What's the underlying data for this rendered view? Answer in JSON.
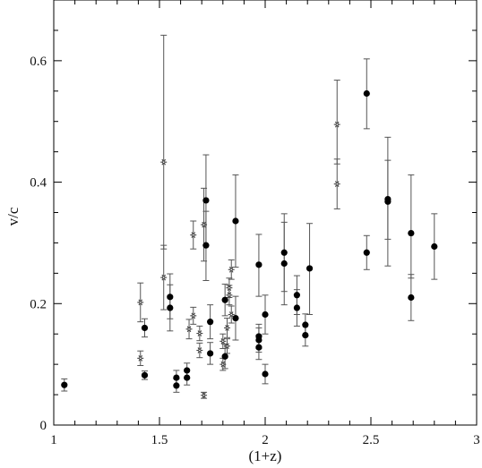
{
  "chart_data": {
    "type": "scatter",
    "title": "",
    "xlabel": "(1+z)",
    "ylabel": "v/c",
    "xlim": [
      1,
      3
    ],
    "ylim": [
      0,
      0.7
    ],
    "x_ticks": [
      "1",
      "1.5",
      "2",
      "2.5",
      "3"
    ],
    "y_ticks": [
      "0",
      "0.2",
      "0.4",
      "0.6"
    ],
    "x_minor_step": 0.1,
    "y_minor_step": 0.05,
    "grid": false,
    "series": [
      {
        "marker": "filled-circle",
        "color": "#000000",
        "points": [
          {
            "x": 1.05,
            "y": 0.066,
            "lo": 0.056,
            "hi": 0.076
          },
          {
            "x": 1.43,
            "y": 0.16,
            "lo": 0.145,
            "hi": 0.175
          },
          {
            "x": 1.43,
            "y": 0.082,
            "lo": 0.075,
            "hi": 0.089
          },
          {
            "x": 1.55,
            "y": 0.211,
            "lo": 0.175,
            "hi": 0.249
          },
          {
            "x": 1.55,
            "y": 0.193,
            "lo": 0.155,
            "hi": 0.231
          },
          {
            "x": 1.58,
            "y": 0.078,
            "lo": 0.066,
            "hi": 0.09
          },
          {
            "x": 1.58,
            "y": 0.065,
            "lo": 0.054,
            "hi": 0.076
          },
          {
            "x": 1.63,
            "y": 0.09,
            "lo": 0.078,
            "hi": 0.102
          },
          {
            "x": 1.63,
            "y": 0.078,
            "lo": 0.066,
            "hi": 0.09
          },
          {
            "x": 1.72,
            "y": 0.37,
            "lo": 0.295,
            "hi": 0.445
          },
          {
            "x": 1.72,
            "y": 0.296,
            "lo": 0.238,
            "hi": 0.352
          },
          {
            "x": 1.74,
            "y": 0.17,
            "lo": 0.142,
            "hi": 0.198
          },
          {
            "x": 1.74,
            "y": 0.118,
            "lo": 0.1,
            "hi": 0.136
          },
          {
            "x": 1.81,
            "y": 0.206,
            "lo": 0.18,
            "hi": 0.232
          },
          {
            "x": 1.81,
            "y": 0.113,
            "lo": 0.093,
            "hi": 0.133
          },
          {
            "x": 1.86,
            "y": 0.336,
            "lo": 0.26,
            "hi": 0.412
          },
          {
            "x": 1.86,
            "y": 0.176,
            "lo": 0.14,
            "hi": 0.212
          },
          {
            "x": 1.97,
            "y": 0.264,
            "lo": 0.212,
            "hi": 0.314
          },
          {
            "x": 1.97,
            "y": 0.146,
            "lo": 0.126,
            "hi": 0.166
          },
          {
            "x": 1.97,
            "y": 0.14,
            "lo": 0.12,
            "hi": 0.16
          },
          {
            "x": 1.97,
            "y": 0.128,
            "lo": 0.108,
            "hi": 0.148
          },
          {
            "x": 2.0,
            "y": 0.182,
            "lo": 0.15,
            "hi": 0.214
          },
          {
            "x": 2.0,
            "y": 0.084,
            "lo": 0.068,
            "hi": 0.1
          },
          {
            "x": 2.09,
            "y": 0.284,
            "lo": 0.22,
            "hi": 0.348
          },
          {
            "x": 2.09,
            "y": 0.266,
            "lo": 0.198,
            "hi": 0.334
          },
          {
            "x": 2.15,
            "y": 0.214,
            "lo": 0.182,
            "hi": 0.246
          },
          {
            "x": 2.15,
            "y": 0.193,
            "lo": 0.163,
            "hi": 0.223
          },
          {
            "x": 2.19,
            "y": 0.165,
            "lo": 0.147,
            "hi": 0.183
          },
          {
            "x": 2.19,
            "y": 0.148,
            "lo": 0.13,
            "hi": 0.166
          },
          {
            "x": 2.21,
            "y": 0.258,
            "lo": 0.182,
            "hi": 0.332
          },
          {
            "x": 2.48,
            "y": 0.546,
            "lo": 0.488,
            "hi": 0.603
          },
          {
            "x": 2.48,
            "y": 0.284,
            "lo": 0.256,
            "hi": 0.312
          },
          {
            "x": 2.58,
            "y": 0.372,
            "lo": 0.306,
            "hi": 0.474
          },
          {
            "x": 2.58,
            "y": 0.368,
            "lo": 0.262,
            "hi": 0.436
          },
          {
            "x": 2.69,
            "y": 0.316,
            "lo": 0.242,
            "hi": 0.412
          },
          {
            "x": 2.69,
            "y": 0.21,
            "lo": 0.172,
            "hi": 0.248
          },
          {
            "x": 2.8,
            "y": 0.294,
            "lo": 0.24,
            "hi": 0.348
          }
        ]
      },
      {
        "marker": "open-star",
        "color": "#000000",
        "points": [
          {
            "x": 1.41,
            "y": 0.202,
            "lo": 0.17,
            "hi": 0.234
          },
          {
            "x": 1.41,
            "y": 0.11,
            "lo": 0.098,
            "hi": 0.122
          },
          {
            "x": 1.52,
            "y": 0.433,
            "lo": 0.29,
            "hi": 0.642
          },
          {
            "x": 1.52,
            "y": 0.243,
            "lo": 0.19,
            "hi": 0.296
          },
          {
            "x": 1.64,
            "y": 0.158,
            "lo": 0.142,
            "hi": 0.174
          },
          {
            "x": 1.66,
            "y": 0.313,
            "lo": 0.29,
            "hi": 0.336
          },
          {
            "x": 1.66,
            "y": 0.18,
            "lo": 0.166,
            "hi": 0.194
          },
          {
            "x": 1.69,
            "y": 0.151,
            "lo": 0.139,
            "hi": 0.163
          },
          {
            "x": 1.69,
            "y": 0.123,
            "lo": 0.111,
            "hi": 0.135
          },
          {
            "x": 1.71,
            "y": 0.33,
            "lo": 0.27,
            "hi": 0.39
          },
          {
            "x": 1.71,
            "y": 0.049,
            "lo": 0.044,
            "hi": 0.054
          },
          {
            "x": 1.8,
            "y": 0.138,
            "lo": 0.126,
            "hi": 0.15
          },
          {
            "x": 1.8,
            "y": 0.1,
            "lo": 0.09,
            "hi": 0.11
          },
          {
            "x": 1.82,
            "y": 0.16,
            "lo": 0.144,
            "hi": 0.176
          },
          {
            "x": 1.82,
            "y": 0.13,
            "lo": 0.118,
            "hi": 0.142
          },
          {
            "x": 1.83,
            "y": 0.226,
            "lo": 0.21,
            "hi": 0.242
          },
          {
            "x": 1.83,
            "y": 0.214,
            "lo": 0.198,
            "hi": 0.23
          },
          {
            "x": 1.84,
            "y": 0.256,
            "lo": 0.24,
            "hi": 0.272
          },
          {
            "x": 1.84,
            "y": 0.182,
            "lo": 0.168,
            "hi": 0.196
          },
          {
            "x": 2.34,
            "y": 0.495,
            "lo": 0.43,
            "hi": 0.568
          },
          {
            "x": 2.34,
            "y": 0.397,
            "lo": 0.356,
            "hi": 0.438
          }
        ]
      }
    ]
  }
}
